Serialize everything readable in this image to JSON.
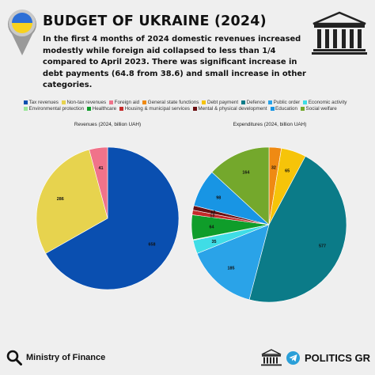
{
  "header": {
    "title": "BUDGET OF UKRAINE (2024)",
    "subtitle": "In the first 4 months of 2024 domestic revenues increased modestly while foreign aid collapsed to less than 1/4 compared to April 2023. There was significant increase in debt payments (64.8 from 38.6) and small increase in other categories."
  },
  "colors": {
    "background": "#efefef",
    "flag_blue": "#2d6fd6",
    "flag_yellow": "#f8d21e"
  },
  "icons": {
    "flag": "ukraine-flag-pin-icon",
    "building": "parliament-building-icon",
    "search": "magnifier-icon",
    "telegram": "telegram-icon"
  },
  "footer": {
    "source": "Ministry of Finance",
    "brand": "POLITICS GR"
  },
  "legend": [
    {
      "label": "Tax revenues",
      "color": "#0a4fb0"
    },
    {
      "label": "Non-tax revenues",
      "color": "#e7d34e"
    },
    {
      "label": "Foreign aid",
      "color": "#f0738a"
    },
    {
      "label": "General state functions",
      "color": "#ef8a13"
    },
    {
      "label": "Debt payment",
      "color": "#f6c409"
    },
    {
      "label": "Defence",
      "color": "#0b7b88"
    },
    {
      "label": "Public order",
      "color": "#2aa3e8"
    },
    {
      "label": "Economic activity",
      "color": "#3fdde6"
    },
    {
      "label": "Environmental protection",
      "color": "#9ae69a"
    },
    {
      "label": "Healthcare",
      "color": "#0f9d2a"
    },
    {
      "label": "Housing & municipal services",
      "color": "#c42a2a"
    },
    {
      "label": "Mental & physical development",
      "color": "#6b0f12"
    },
    {
      "label": "Education",
      "color": "#1895e4"
    },
    {
      "label": "Social welfare",
      "color": "#74a82c"
    }
  ],
  "chart_data": [
    {
      "type": "pie",
      "title": "Revenues (2024, billion UAH)",
      "slices": [
        {
          "label": "Tax revenues",
          "value": 658,
          "color": "#0a4fb0",
          "display": "658"
        },
        {
          "label": "Non-tax revenues",
          "value": 286,
          "color": "#e7d34e",
          "display": "286"
        },
        {
          "label": "Foreign aid",
          "value": 41,
          "color": "#f0738a",
          "display": "41"
        }
      ]
    },
    {
      "type": "pie",
      "title": "Expenditures (2024, billion UAH)",
      "slices": [
        {
          "label": "General state functions",
          "value": 32,
          "color": "#ef8a13",
          "display": "32"
        },
        {
          "label": "Debt payment",
          "value": 65,
          "color": "#f6c409",
          "display": "65"
        },
        {
          "label": "Defence",
          "value": 577,
          "color": "#0b7b88",
          "display": "577"
        },
        {
          "label": "Public order",
          "value": 185,
          "color": "#2aa3e8",
          "display": "185"
        },
        {
          "label": "Economic activity",
          "value": 35,
          "color": "#3fdde6",
          "display": "35"
        },
        {
          "label": "Environmental protection",
          "value": 2,
          "color": "#9ae69a",
          "display": ""
        },
        {
          "label": "Healthcare",
          "value": 64,
          "color": "#0f9d2a",
          "display": "64"
        },
        {
          "label": "Housing & municipal services",
          "value": 12,
          "color": "#c42a2a",
          "display": "12"
        },
        {
          "label": "Mental & physical development",
          "value": 12,
          "color": "#6b0f12",
          "display": "12"
        },
        {
          "label": "Education",
          "value": 98,
          "color": "#1895e4",
          "display": "98"
        },
        {
          "label": "Social welfare",
          "value": 164,
          "color": "#74a82c",
          "display": "164"
        }
      ]
    }
  ]
}
